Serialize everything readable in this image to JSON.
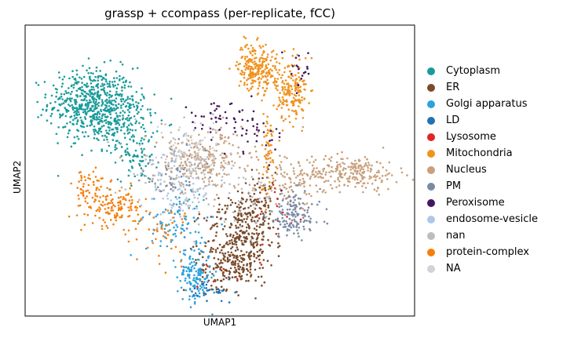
{
  "chart_data": {
    "type": "scatter",
    "title": "grassp + ccompass (per-replicate, fCC)",
    "xlabel": "UMAP1",
    "ylabel": "UMAP2",
    "xlim": [
      0,
      10
    ],
    "ylim": [
      0,
      7.5
    ],
    "grid": false,
    "ticks": "hidden",
    "legend": {
      "placement": "right",
      "marker": "circle"
    },
    "series": [
      {
        "name": "Cytoplasm",
        "color": "#1a9b9b",
        "clusters": [
          {
            "center": [
              1.7,
              5.5
            ],
            "spread": [
              0.55,
              0.45
            ],
            "n": 520
          },
          {
            "center": [
              2.4,
              5.0
            ],
            "spread": [
              0.45,
              0.45
            ],
            "n": 200
          },
          {
            "center": [
              2.9,
              4.1
            ],
            "spread": [
              0.25,
              0.3
            ],
            "n": 60
          }
        ]
      },
      {
        "name": "ER",
        "color": "#7a4a2a",
        "clusters": [
          {
            "center": [
              5.5,
              1.9
            ],
            "spread": [
              0.45,
              0.55
            ],
            "n": 320
          },
          {
            "center": [
              6.0,
              2.9
            ],
            "spread": [
              0.3,
              0.4
            ],
            "n": 120
          },
          {
            "center": [
              5.2,
              1.2
            ],
            "spread": [
              0.35,
              0.25
            ],
            "n": 100
          }
        ]
      },
      {
        "name": "Golgi apparatus",
        "color": "#2fa2dd",
        "clusters": [
          {
            "center": [
              4.35,
              1.05
            ],
            "spread": [
              0.22,
              0.35
            ],
            "n": 150
          },
          {
            "center": [
              3.9,
              2.4
            ],
            "spread": [
              0.4,
              0.45
            ],
            "n": 90
          }
        ]
      },
      {
        "name": "LD",
        "color": "#2272b2",
        "clusters": [
          {
            "center": [
              4.8,
              0.6
            ],
            "spread": [
              0.3,
              0.15
            ],
            "n": 30
          }
        ]
      },
      {
        "name": "Lysosome",
        "color": "#e22424",
        "clusters": [
          {
            "center": [
              6.5,
              2.7
            ],
            "spread": [
              0.4,
              0.5
            ],
            "n": 14
          },
          {
            "center": [
              4.9,
              1.2
            ],
            "spread": [
              0.3,
              0.2
            ],
            "n": 6
          }
        ]
      },
      {
        "name": "Mitochondria",
        "color": "#f0921f",
        "clusters": [
          {
            "center": [
              5.85,
              6.45
            ],
            "spread": [
              0.2,
              0.3
            ],
            "n": 160
          },
          {
            "center": [
              6.85,
              5.7
            ],
            "spread": [
              0.2,
              0.35
            ],
            "n": 150
          },
          {
            "center": [
              6.35,
              6.3
            ],
            "spread": [
              0.35,
              0.3
            ],
            "n": 110
          },
          {
            "center": [
              6.25,
              4.2
            ],
            "spread": [
              0.1,
              0.55
            ],
            "n": 60
          }
        ]
      },
      {
        "name": "Nucleus",
        "color": "#c9a07c",
        "clusters": [
          {
            "center": [
              8.4,
              3.7
            ],
            "spread": [
              0.6,
              0.22
            ],
            "n": 220
          },
          {
            "center": [
              4.6,
              4.0
            ],
            "spread": [
              0.7,
              0.4
            ],
            "n": 230
          },
          {
            "center": [
              6.9,
              3.5
            ],
            "spread": [
              0.45,
              0.3
            ],
            "n": 90
          }
        ]
      },
      {
        "name": "PM",
        "color": "#7b8aa4",
        "clusters": [
          {
            "center": [
              6.9,
              2.6
            ],
            "spread": [
              0.35,
              0.3
            ],
            "n": 140
          },
          {
            "center": [
              3.8,
              3.5
            ],
            "spread": [
              0.4,
              0.4
            ],
            "n": 60
          }
        ]
      },
      {
        "name": "Peroxisome",
        "color": "#44185e",
        "clusters": [
          {
            "center": [
              4.9,
              5.1
            ],
            "spread": [
              0.5,
              0.2
            ],
            "n": 45
          },
          {
            "center": [
              6.0,
              4.6
            ],
            "spread": [
              0.35,
              0.4
            ],
            "n": 30
          },
          {
            "center": [
              7.05,
              6.3
            ],
            "spread": [
              0.15,
              0.3
            ],
            "n": 20
          }
        ]
      },
      {
        "name": "endosome-vesicle",
        "color": "#aec7e8",
        "clusters": [
          {
            "center": [
              3.9,
              3.3
            ],
            "spread": [
              0.45,
              0.45
            ],
            "n": 90
          }
        ]
      },
      {
        "name": "nan",
        "color": "#bdbdbd",
        "clusters": [
          {
            "center": [
              4.2,
              3.8
            ],
            "spread": [
              0.7,
              0.55
            ],
            "n": 120
          },
          {
            "center": [
              5.6,
              3.0
            ],
            "spread": [
              0.5,
              0.4
            ],
            "n": 40
          }
        ]
      },
      {
        "name": "protein-complex",
        "color": "#f57f0e",
        "clusters": [
          {
            "center": [
              2.3,
              2.8
            ],
            "spread": [
              0.35,
              0.25
            ],
            "n": 140
          },
          {
            "center": [
              1.6,
              3.3
            ],
            "spread": [
              0.2,
              0.3
            ],
            "n": 50
          },
          {
            "center": [
              3.6,
              2.1
            ],
            "spread": [
              0.3,
              0.4
            ],
            "n": 40
          }
        ]
      },
      {
        "name": "NA",
        "color": "#d3d3d3",
        "clusters": [
          {
            "center": [
              4.3,
              4.3
            ],
            "spread": [
              0.5,
              0.35
            ],
            "n": 60
          }
        ]
      }
    ]
  }
}
